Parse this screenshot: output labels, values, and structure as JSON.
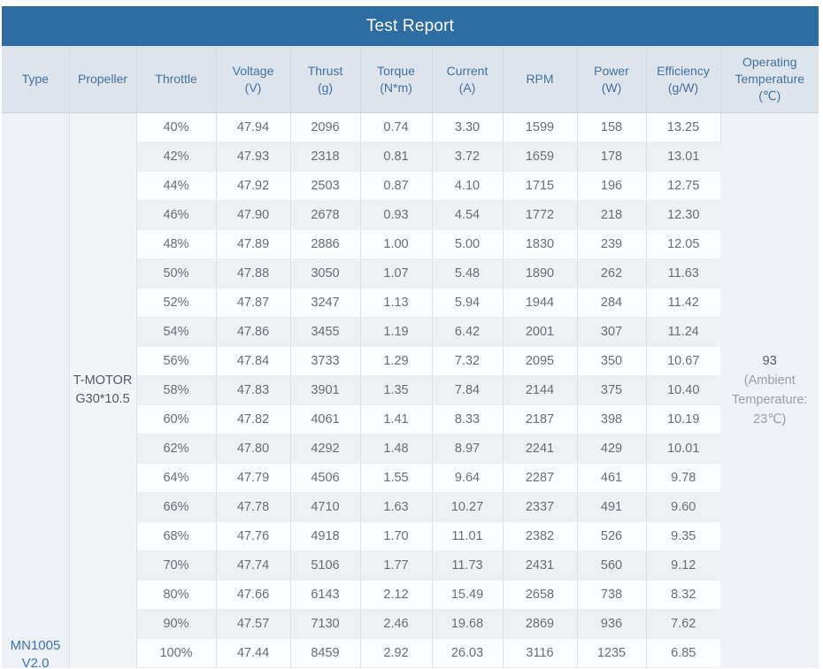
{
  "title": "Test Report",
  "colors": {
    "title_bar": "#2e6da4",
    "title_text": "#ffffff",
    "header_background": "#dee4eb",
    "header_text": "#44719f",
    "data_text": "#6a6e73",
    "type_text": "#4174ab"
  },
  "columns": [
    {
      "id": "type",
      "lines": [
        "Type"
      ]
    },
    {
      "id": "propeller",
      "lines": [
        "Propeller"
      ]
    },
    {
      "id": "throttle",
      "lines": [
        "Throttle"
      ]
    },
    {
      "id": "voltage",
      "lines": [
        "Voltage",
        "(V)"
      ]
    },
    {
      "id": "thrust",
      "lines": [
        "Thrust",
        "(g)"
      ]
    },
    {
      "id": "torque",
      "lines": [
        "Torque",
        "(N*m)"
      ]
    },
    {
      "id": "current",
      "lines": [
        "Current",
        "(A)"
      ]
    },
    {
      "id": "rpm",
      "lines": [
        "RPM"
      ]
    },
    {
      "id": "power",
      "lines": [
        "Power",
        "(W)"
      ]
    },
    {
      "id": "efficiency",
      "lines": [
        "Efficiency",
        "(g/W)"
      ]
    },
    {
      "id": "operating_temperature",
      "lines": [
        "Operating",
        "Temperature",
        "(℃)"
      ]
    }
  ],
  "type_cell": {
    "lines": [
      "MN1005",
      "V2.0"
    ]
  },
  "propeller_cell": {
    "lines": [
      "T-MOTOR",
      "G30*10.5"
    ]
  },
  "operating_temperature_cell": {
    "value": "93",
    "note": "(Ambient Temperature: 23℃)"
  },
  "rows": [
    {
      "throttle": "40%",
      "voltage": "47.94",
      "thrust": "2096",
      "torque": "0.74",
      "current": "3.30",
      "rpm": "1599",
      "power": "158",
      "efficiency": "13.25"
    },
    {
      "throttle": "42%",
      "voltage": "47.93",
      "thrust": "2318",
      "torque": "0.81",
      "current": "3.72",
      "rpm": "1659",
      "power": "178",
      "efficiency": "13.01"
    },
    {
      "throttle": "44%",
      "voltage": "47.92",
      "thrust": "2503",
      "torque": "0.87",
      "current": "4.10",
      "rpm": "1715",
      "power": "196",
      "efficiency": "12.75"
    },
    {
      "throttle": "46%",
      "voltage": "47.90",
      "thrust": "2678",
      "torque": "0.93",
      "current": "4.54",
      "rpm": "1772",
      "power": "218",
      "efficiency": "12.30"
    },
    {
      "throttle": "48%",
      "voltage": "47.89",
      "thrust": "2886",
      "torque": "1.00",
      "current": "5.00",
      "rpm": "1830",
      "power": "239",
      "efficiency": "12.05"
    },
    {
      "throttle": "50%",
      "voltage": "47.88",
      "thrust": "3050",
      "torque": "1.07",
      "current": "5.48",
      "rpm": "1890",
      "power": "262",
      "efficiency": "11.63"
    },
    {
      "throttle": "52%",
      "voltage": "47.87",
      "thrust": "3247",
      "torque": "1.13",
      "current": "5.94",
      "rpm": "1944",
      "power": "284",
      "efficiency": "11.42"
    },
    {
      "throttle": "54%",
      "voltage": "47.86",
      "thrust": "3455",
      "torque": "1.19",
      "current": "6.42",
      "rpm": "2001",
      "power": "307",
      "efficiency": "11.24"
    },
    {
      "throttle": "56%",
      "voltage": "47.84",
      "thrust": "3733",
      "torque": "1.29",
      "current": "7.32",
      "rpm": "2095",
      "power": "350",
      "efficiency": "10.67"
    },
    {
      "throttle": "58%",
      "voltage": "47.83",
      "thrust": "3901",
      "torque": "1.35",
      "current": "7.84",
      "rpm": "2144",
      "power": "375",
      "efficiency": "10.40"
    },
    {
      "throttle": "60%",
      "voltage": "47.82",
      "thrust": "4061",
      "torque": "1.41",
      "current": "8.33",
      "rpm": "2187",
      "power": "398",
      "efficiency": "10.19"
    },
    {
      "throttle": "62%",
      "voltage": "47.80",
      "thrust": "4292",
      "torque": "1.48",
      "current": "8.97",
      "rpm": "2241",
      "power": "429",
      "efficiency": "10.01"
    },
    {
      "throttle": "64%",
      "voltage": "47.79",
      "thrust": "4506",
      "torque": "1.55",
      "current": "9.64",
      "rpm": "2287",
      "power": "461",
      "efficiency": "9.78"
    },
    {
      "throttle": "66%",
      "voltage": "47.78",
      "thrust": "4710",
      "torque": "1.63",
      "current": "10.27",
      "rpm": "2337",
      "power": "491",
      "efficiency": "9.60"
    },
    {
      "throttle": "68%",
      "voltage": "47.76",
      "thrust": "4918",
      "torque": "1.70",
      "current": "11.01",
      "rpm": "2382",
      "power": "526",
      "efficiency": "9.35"
    },
    {
      "throttle": "70%",
      "voltage": "47.74",
      "thrust": "5106",
      "torque": "1.77",
      "current": "11.73",
      "rpm": "2431",
      "power": "560",
      "efficiency": "9.12"
    },
    {
      "throttle": "80%",
      "voltage": "47.66",
      "thrust": "6143",
      "torque": "2.12",
      "current": "15.49",
      "rpm": "2658",
      "power": "738",
      "efficiency": "8.32"
    },
    {
      "throttle": "90%",
      "voltage": "47.57",
      "thrust": "7130",
      "torque": "2.46",
      "current": "19.68",
      "rpm": "2869",
      "power": "936",
      "efficiency": "7.62"
    },
    {
      "throttle": "100%",
      "voltage": "47.44",
      "thrust": "8459",
      "torque": "2.92",
      "current": "26.03",
      "rpm": "3116",
      "power": "1235",
      "efficiency": "6.85"
    }
  ]
}
